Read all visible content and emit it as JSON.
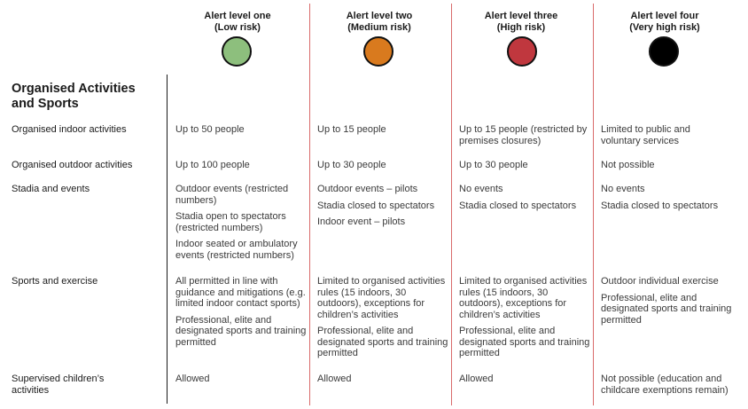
{
  "levels": [
    {
      "name": "Alert level one",
      "risk": "(Low risk)",
      "color": "#8dbf7d"
    },
    {
      "name": "Alert level two",
      "risk": "(Medium risk)",
      "color": "#d97a1e"
    },
    {
      "name": "Alert level three",
      "risk": "(High risk)",
      "color": "#c0373e"
    },
    {
      "name": "Alert level four",
      "risk": "(Very high risk)",
      "color": "#000000"
    }
  ],
  "section_title": "Organised Activities and Sports",
  "rows": [
    {
      "label": "Organised indoor activities",
      "cells": [
        [
          "Up to 50 people"
        ],
        [
          "Up to 15 people"
        ],
        [
          "Up to 15 people (restricted by premises closures)"
        ],
        [
          "Limited to public and voluntary services"
        ]
      ]
    },
    {
      "label": "Organised outdoor activities",
      "cells": [
        [
          "Up to 100 people"
        ],
        [
          "Up to 30 people"
        ],
        [
          "Up to 30 people"
        ],
        [
          "Not possible"
        ]
      ]
    },
    {
      "label": "Stadia and events",
      "cells": [
        [
          "Outdoor events (restricted numbers)",
          "Stadia open to spectators (restricted numbers)",
          "Indoor seated or ambulatory events (restricted numbers)"
        ],
        [
          "Outdoor events – pilots",
          "Stadia closed to spectators",
          "Indoor event – pilots"
        ],
        [
          "No events",
          "Stadia closed to spectators"
        ],
        [
          "No events",
          "Stadia closed to spectators"
        ]
      ]
    },
    {
      "label": "Sports and exercise",
      "cells": [
        [
          "All permitted in line with guidance and mitigations (e.g. limited indoor contact sports)",
          "Professional, elite and designated sports and training permitted"
        ],
        [
          "Limited to organised activities rules (15 indoors, 30 outdoors), exceptions for children’s activities",
          "Professional, elite and designated sports and training permitted"
        ],
        [
          "Limited to organised activities rules (15 indoors, 30 outdoors), exceptions for children’s activities",
          "Professional, elite and designated sports and training permitted"
        ],
        [
          "Outdoor individual exercise",
          "Professional, elite and designated sports and training permitted"
        ]
      ]
    },
    {
      "label": "Supervised children’s activities",
      "cells": [
        [
          "Allowed"
        ],
        [
          "Allowed"
        ],
        [
          "Allowed"
        ],
        [
          "Not possible (education and childcare exemptions remain)"
        ]
      ]
    }
  ]
}
